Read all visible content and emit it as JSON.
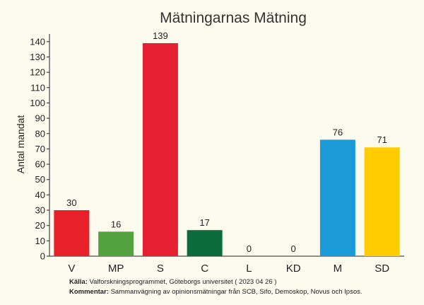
{
  "chart_data": {
    "type": "bar",
    "title": "Mätningarnas Mätning",
    "ylabel": "Antal mandat",
    "xlabel": "",
    "categories": [
      "V",
      "MP",
      "S",
      "C",
      "L",
      "KD",
      "M",
      "SD"
    ],
    "values": [
      30,
      16,
      139,
      17,
      0,
      0,
      76,
      71
    ],
    "data_labels": [
      "30",
      "16",
      "139",
      "17",
      "0",
      "0",
      "76",
      "71"
    ],
    "colors": [
      "#e8202a",
      "#52a23f",
      "#e61f33",
      "#0b6b3a",
      "#1e6fb6",
      "#1d4f91",
      "#1a9ad6",
      "#ffcc00"
    ],
    "ylim": [
      0,
      145
    ],
    "yticks": [
      "0",
      "10",
      "20",
      "30",
      "40",
      "50",
      "60",
      "70",
      "80",
      "90",
      "100",
      "110",
      "120",
      "130",
      "140"
    ],
    "grid": false,
    "legend": "none"
  },
  "footer": {
    "source_label": "Källa:",
    "source_text": " Valforskningsprogrammet, Göteborgs universitet ( 2023 04 26 )",
    "comment_label": "Kommentar:",
    "comment_text": " Sammanvägning av opinionsmätningar från SCB, Sifo, Demoskop, Novus och Ipsos."
  }
}
